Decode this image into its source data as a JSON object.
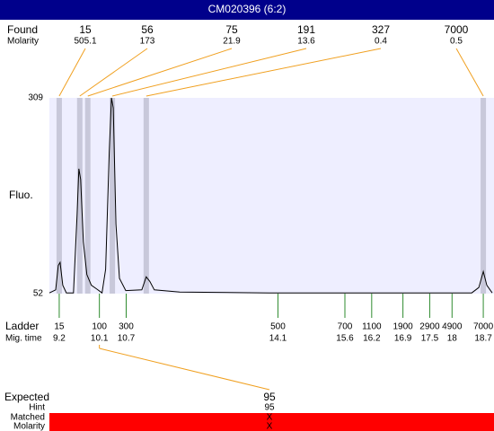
{
  "header": {
    "title": "CM020396 (6:2)"
  },
  "found": {
    "label": "Found",
    "sublabel": "Molarity",
    "peaks": [
      {
        "size": "15",
        "molarity": "505.1",
        "time": 9.2
      },
      {
        "size": "56",
        "molarity": "173",
        "time": 9.66
      },
      {
        "size": "75",
        "molarity": "21.9",
        "time": 9.84
      },
      {
        "size": "191",
        "molarity": "13.6",
        "time": 10.39
      },
      {
        "size": "327",
        "molarity": "0.4",
        "time": 11.15
      },
      {
        "size": "7000",
        "molarity": "0.5",
        "time": 18.7
      }
    ]
  },
  "chart_data": {
    "type": "line",
    "ylabel": "Fluo.",
    "ylim": [
      52,
      309
    ],
    "yticks": [
      52,
      309
    ],
    "xlim": [
      8.98,
      18.94
    ],
    "color": "#000000",
    "x": [
      8.98,
      9.12,
      9.18,
      9.22,
      9.28,
      9.36,
      9.52,
      9.6,
      9.64,
      9.68,
      9.74,
      9.82,
      9.92,
      10.04,
      10.16,
      10.24,
      10.32,
      10.37,
      10.41,
      10.47,
      10.55,
      10.69,
      11.05,
      11.15,
      11.23,
      11.33,
      11.9,
      13.9,
      16.93,
      18.44,
      18.6,
      18.7,
      18.78,
      18.9
    ],
    "values": [
      53,
      57,
      89,
      93,
      63,
      53,
      53,
      155,
      216,
      202,
      120,
      77,
      63,
      58,
      53,
      84,
      237,
      309,
      296,
      143,
      72,
      56,
      57,
      74,
      68,
      57,
      54,
      53,
      53,
      53,
      60,
      81,
      63,
      53
    ]
  },
  "ladder": {
    "label": "Ladder",
    "sublabel": "Mig. time",
    "items": [
      {
        "size": "15",
        "time": 9.2
      },
      {
        "size": "100",
        "time": 10.1
      },
      {
        "size": "300",
        "time": 10.7
      },
      {
        "size": "500",
        "time": 14.1
      },
      {
        "size": "700",
        "time": 15.6
      },
      {
        "size": "1100",
        "time": 16.2
      },
      {
        "size": "1900",
        "time": 16.9
      },
      {
        "size": "2900",
        "time": 17.5
      },
      {
        "size": "4900",
        "time": 18
      },
      {
        "size": "7000",
        "time": 18.7
      }
    ]
  },
  "expected": {
    "label": "Expected",
    "value": "95",
    "hint_label": "Hint",
    "hint": "95",
    "matched_label": "Matched",
    "matched": "X",
    "molarity_label": "Molarity",
    "molarity": "X"
  }
}
